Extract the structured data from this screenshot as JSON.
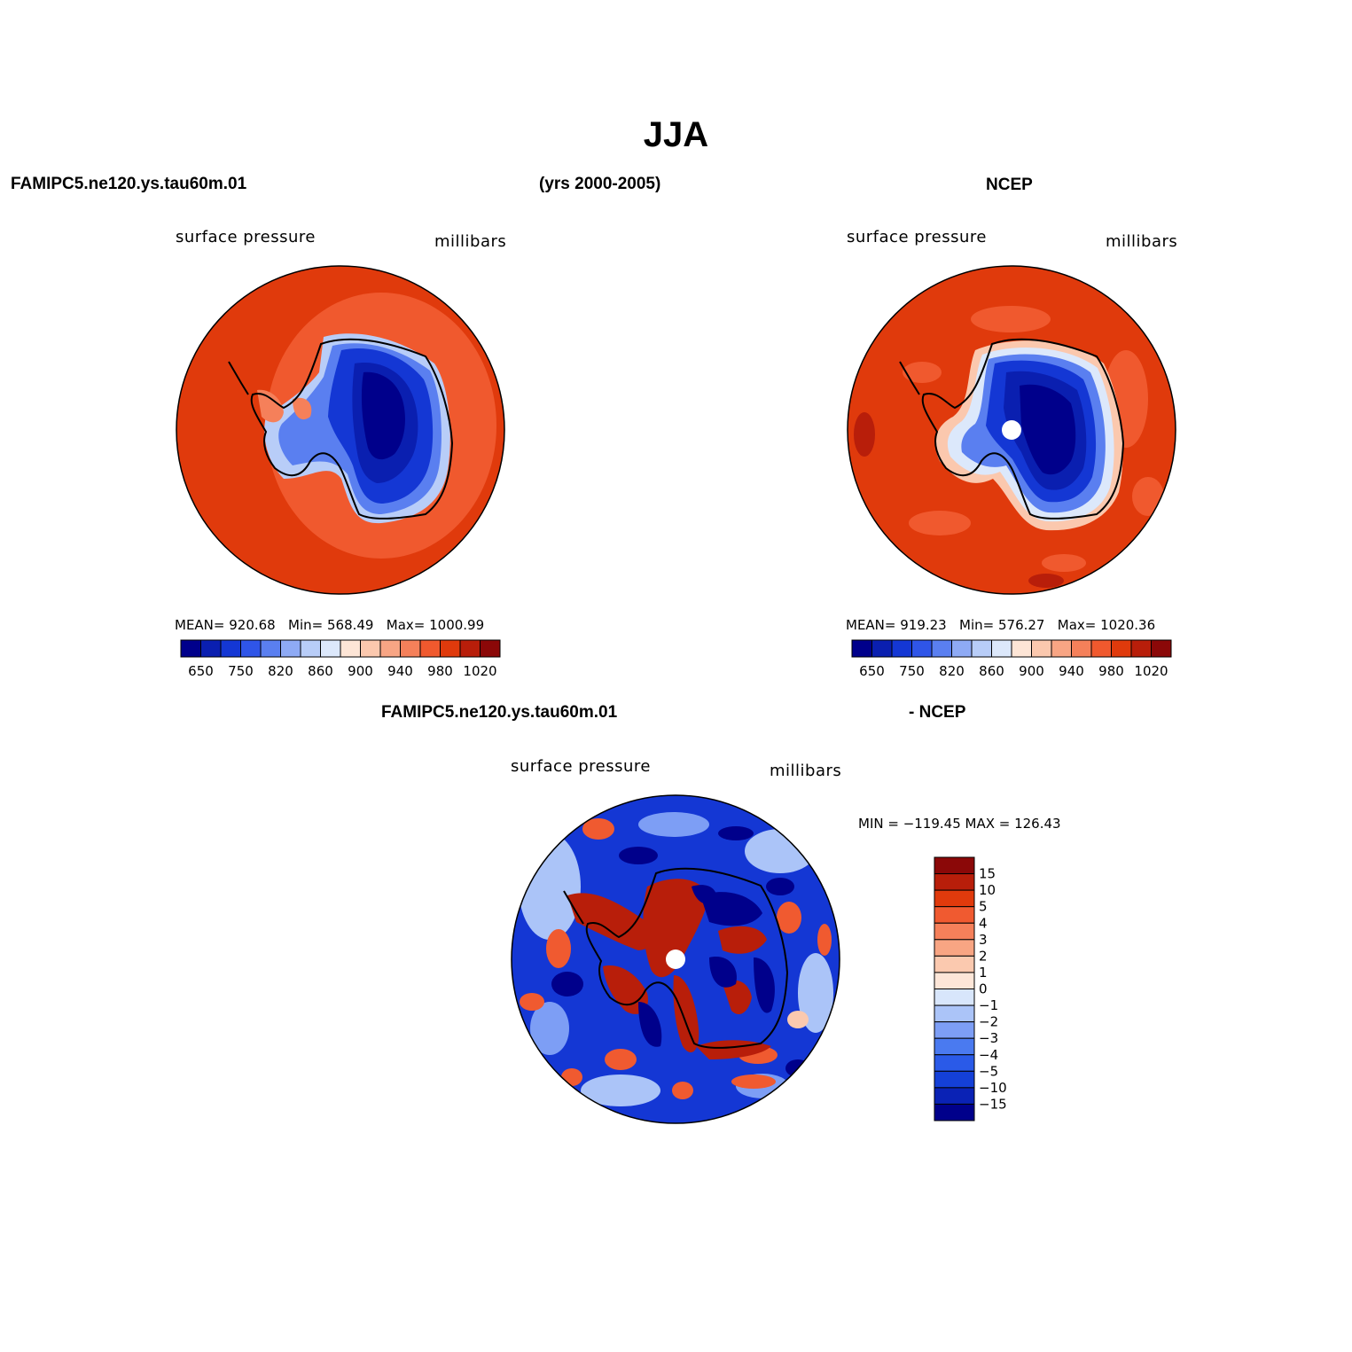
{
  "title": "JJA",
  "header": {
    "model": "FAMIPC5.ne120.ys.tau60m.01",
    "years": "(yrs 2000-2005)",
    "obs": "NCEP"
  },
  "diff_header": {
    "model": "FAMIPC5.ne120.ys.tau60m.01",
    "obs": "- NCEP"
  },
  "panels": [
    {
      "variable": "surface pressure",
      "units": "millibars",
      "stats": "MEAN= 920.68   Min= 568.49   Max= 1000.99"
    },
    {
      "variable": "surface pressure",
      "units": "millibars",
      "stats": "MEAN= 919.23   Min= 576.27   Max= 1020.36"
    },
    {
      "variable": "surface pressure",
      "units": "millibars",
      "stats": "MIN = −119.45 MAX = 126.43"
    }
  ],
  "colorbar_abs": {
    "colors": [
      "#00008b",
      "#0a1fb0",
      "#1437d4",
      "#2f55e8",
      "#5a7ff0",
      "#8eaaf5",
      "#b8cdf8",
      "#dce8fb",
      "#fde5d6",
      "#fbc8ae",
      "#f8a584",
      "#f5805a",
      "#f0592e",
      "#e03a0c",
      "#b81e0a",
      "#8b0808"
    ],
    "labels": [
      "650",
      "750",
      "820",
      "860",
      "900",
      "940",
      "980",
      "1020"
    ]
  },
  "colorbar_diff": {
    "colors": [
      "#00008b",
      "#0a22b5",
      "#1440d8",
      "#2a5ae8",
      "#4a7af0",
      "#7d9ef5",
      "#abc4f8",
      "#d8e6fb",
      "#fde6d8",
      "#fbc9af",
      "#f8a583",
      "#f5805a",
      "#f05a30",
      "#e03a0c",
      "#b81e0a",
      "#8b0808"
    ],
    "labels": [
      "15",
      "10",
      "5",
      "4",
      "3",
      "2",
      "1",
      "0",
      "−1",
      "−2",
      "−3",
      "−4",
      "−5",
      "−10",
      "−15"
    ]
  },
  "chart_data": {
    "type": "heatmap",
    "maps": [
      {
        "name": "FAMIPC5.ne120.ys.tau60m.01",
        "variable": "surface pressure",
        "units": "millibars",
        "mean": 920.68,
        "min": 568.49,
        "max": 1000.99
      },
      {
        "name": "NCEP",
        "variable": "surface pressure",
        "units": "millibars",
        "mean": 919.23,
        "min": 576.27,
        "max": 1020.36
      },
      {
        "name": "FAMIPC5.ne120.ys.tau60m.01 - NCEP",
        "variable": "surface pressure",
        "units": "millibars",
        "min": -119.45,
        "max": 126.43
      }
    ],
    "contour_levels_abs": [
      650,
      750,
      820,
      860,
      900,
      940,
      980,
      1020
    ],
    "contour_levels_diff": [
      15,
      10,
      5,
      4,
      3,
      2,
      1,
      0,
      -1,
      -2,
      -3,
      -4,
      -5,
      -10,
      -15
    ]
  }
}
